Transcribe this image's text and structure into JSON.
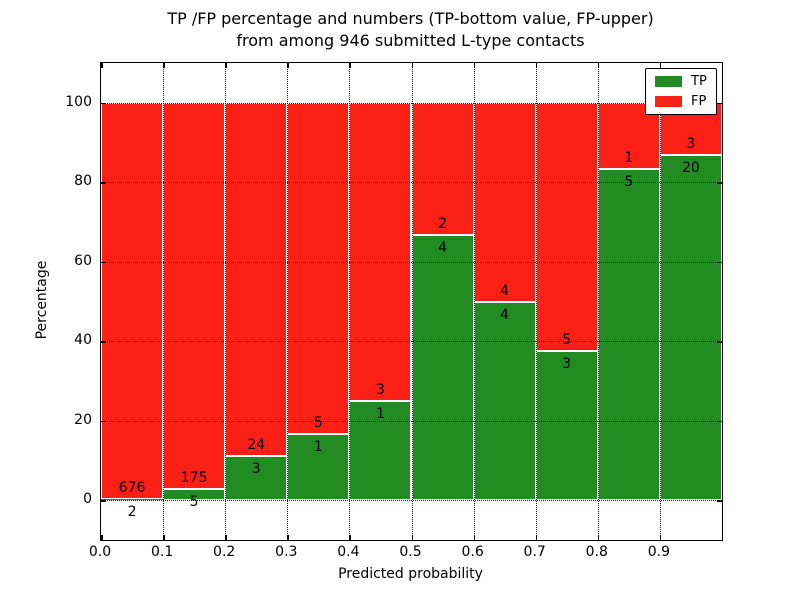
{
  "title": {
    "line1": "TP /FP percentage and numbers (TP-bottom value, FP-upper)",
    "line2": "from among 946 submitted L-type contacts"
  },
  "x_axis": {
    "label": "Predicted probability",
    "ticks": [
      "0.0",
      "0.1",
      "0.2",
      "0.3",
      "0.4",
      "0.5",
      "0.6",
      "0.7",
      "0.8",
      "0.9"
    ]
  },
  "y_axis": {
    "label": "Percentage",
    "ticks": [
      "0",
      "20",
      "40",
      "60",
      "80",
      "100"
    ],
    "tick_values": [
      0,
      20,
      40,
      60,
      80,
      100
    ]
  },
  "legend": {
    "items": [
      {
        "label": "TP",
        "color": "#228b22"
      },
      {
        "label": "FP",
        "color": "#fb2016"
      }
    ]
  },
  "chart_data": {
    "type": "bar",
    "subtype": "stacked-percentage-histogram",
    "title": "TP /FP percentage and numbers (TP-bottom value, FP-upper) from among 946 submitted L-type contacts",
    "xlabel": "Predicted probability",
    "ylabel": "Percentage",
    "xlim": [
      0.0,
      1.0
    ],
    "ylim": [
      -10,
      110
    ],
    "grid": true,
    "legend_position": "upper right",
    "total_contacts": 946,
    "bin_edges": [
      0.0,
      0.1,
      0.2,
      0.3,
      0.4,
      0.5,
      0.6,
      0.7,
      0.8,
      0.9,
      1.0
    ],
    "categories": [
      "0.0-0.1",
      "0.1-0.2",
      "0.2-0.3",
      "0.3-0.4",
      "0.4-0.5",
      "0.5-0.6",
      "0.6-0.7",
      "0.7-0.8",
      "0.8-0.9",
      "0.9-1.0"
    ],
    "series": [
      {
        "name": "TP",
        "color": "#228b22",
        "counts": [
          2,
          5,
          3,
          1,
          1,
          4,
          4,
          3,
          5,
          20
        ],
        "percent": [
          0.29,
          2.78,
          11.11,
          16.67,
          25.0,
          66.67,
          50.0,
          37.5,
          83.33,
          86.96
        ]
      },
      {
        "name": "FP",
        "color": "#fb2016",
        "counts": [
          676,
          175,
          24,
          5,
          3,
          2,
          4,
          5,
          1,
          3
        ],
        "percent": [
          99.71,
          97.22,
          88.89,
          83.33,
          75.0,
          33.33,
          50.0,
          62.5,
          16.67,
          13.04
        ]
      }
    ]
  }
}
